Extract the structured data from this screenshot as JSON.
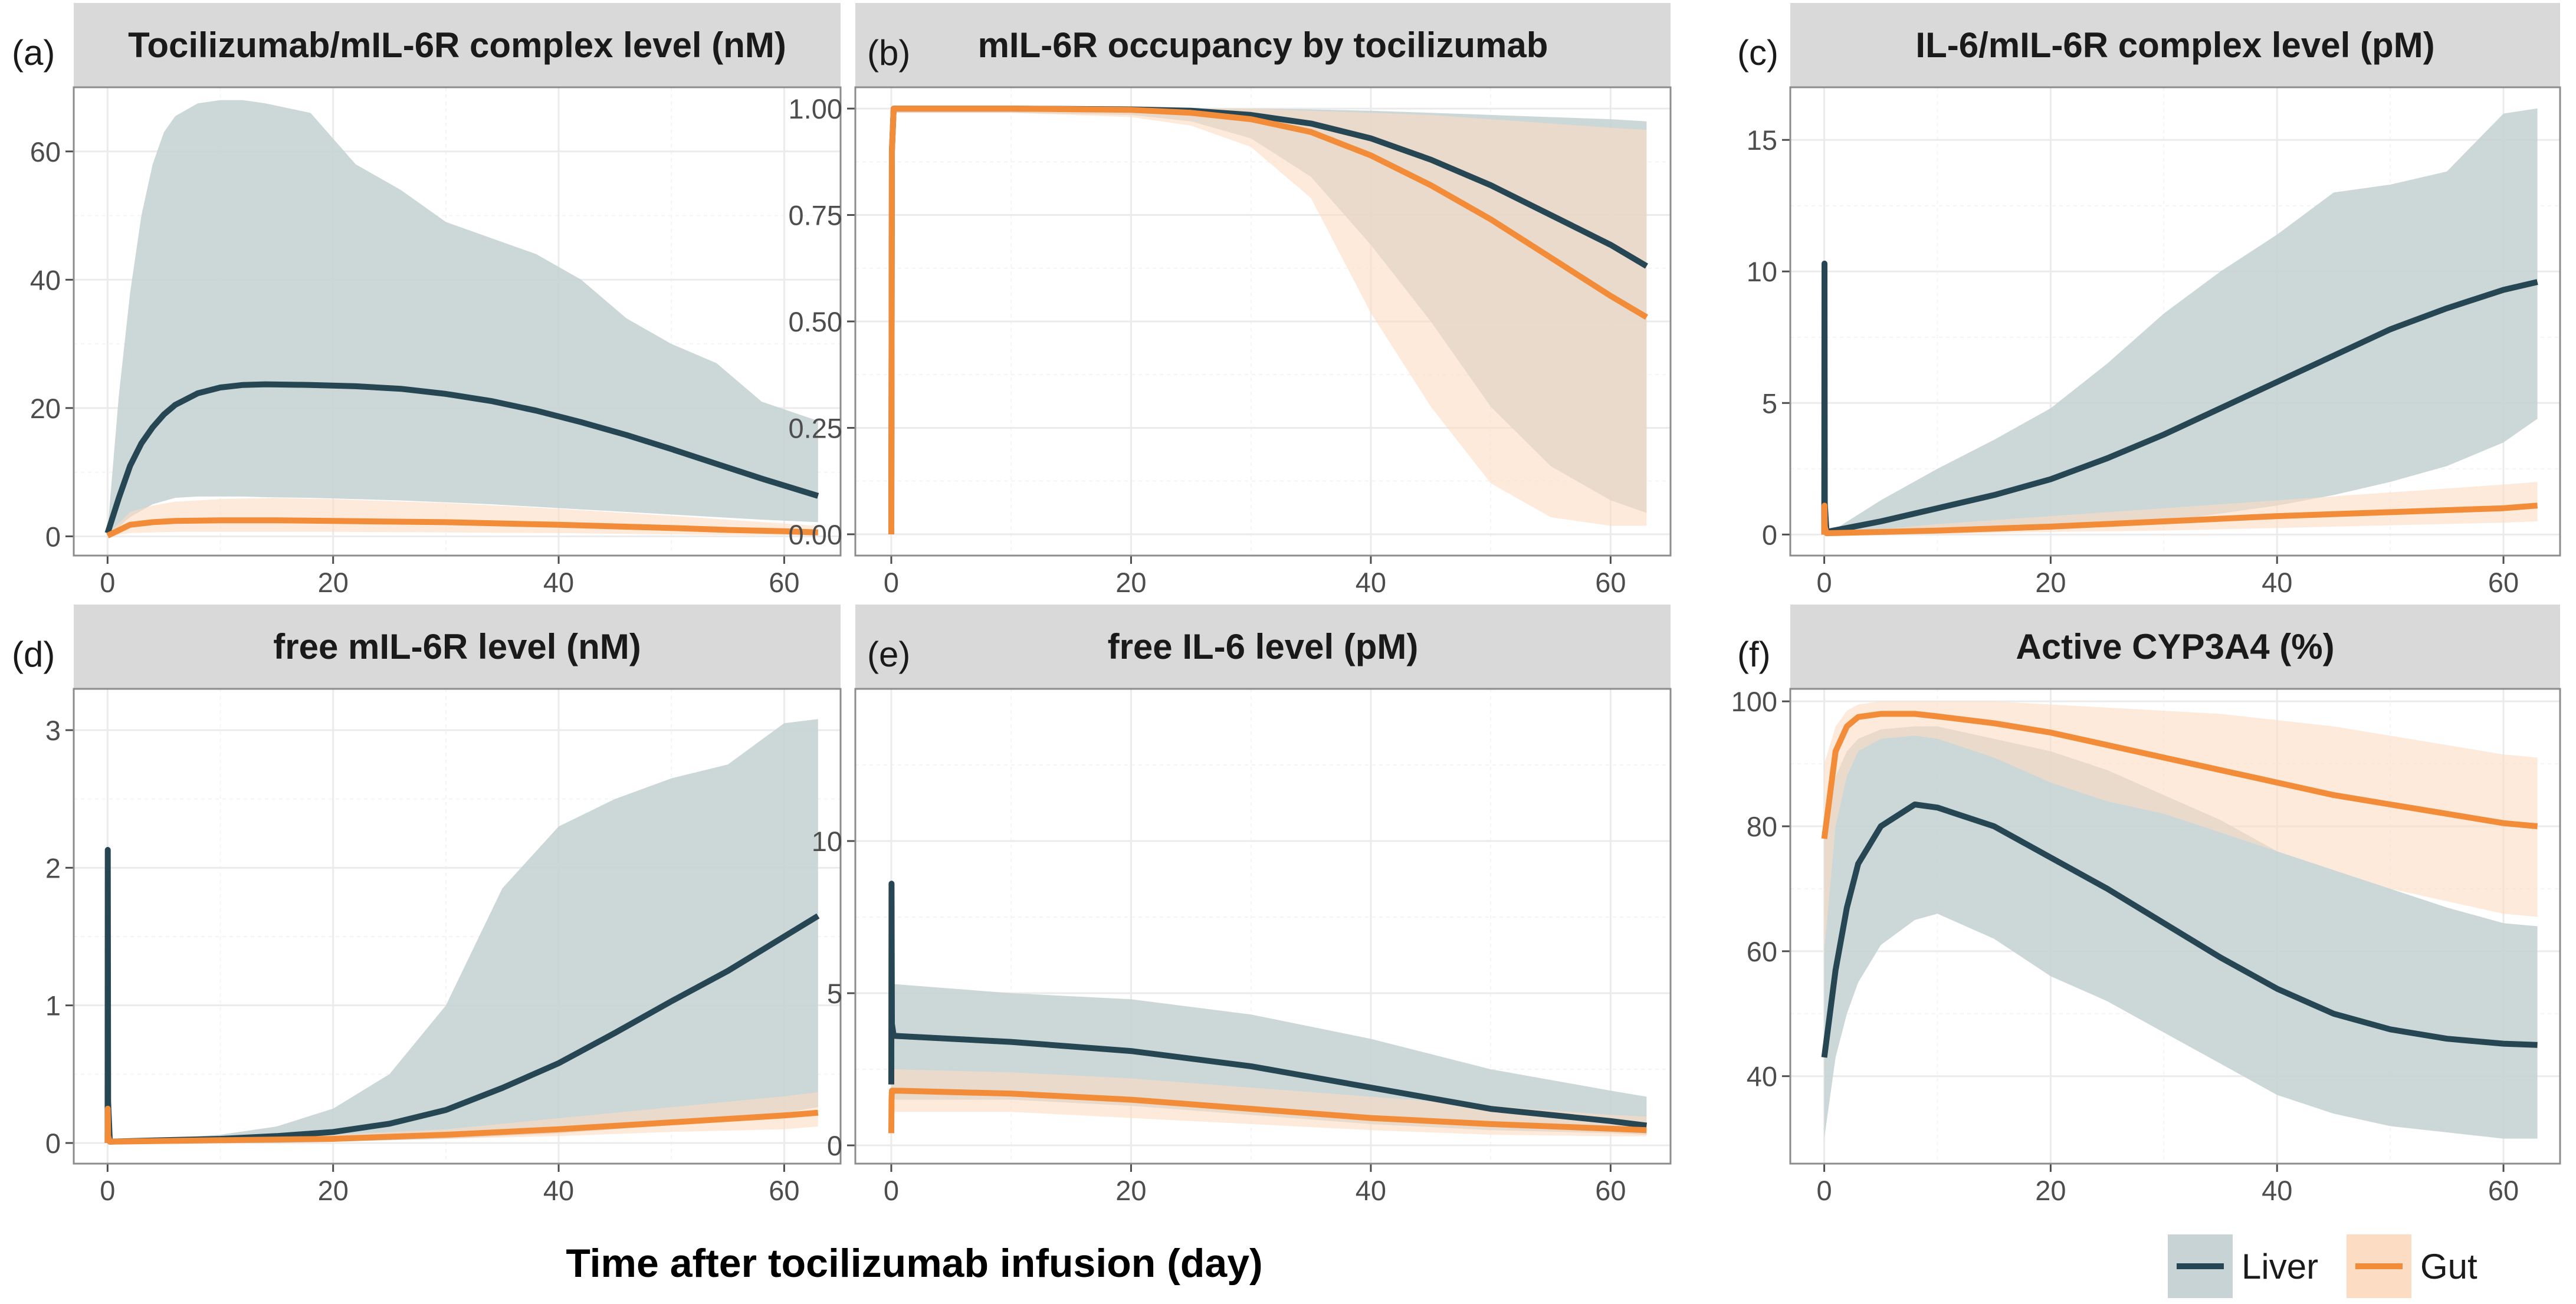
{
  "figure": {
    "xlabel": "Time after tocilizumab infusion (day)",
    "legend": [
      {
        "label": "Liver",
        "color": "#264653",
        "band_color": "#c7d3d4"
      },
      {
        "label": "Gut",
        "color": "#f28c38",
        "band_color": "#fcdcc3"
      }
    ]
  },
  "chart_data": [
    {
      "type": "line",
      "tag": "(a)",
      "title": "Tocilizumab/mIL-6R complex level (nM)",
      "xlim": [
        -3,
        65
      ],
      "ylim": [
        -3,
        70
      ],
      "xticks": [
        0,
        20,
        40,
        60
      ],
      "yticks": [
        0,
        20,
        40,
        60
      ],
      "series": [
        {
          "name": "Liver",
          "x": [
            0,
            1,
            2,
            3,
            4,
            5,
            6,
            8,
            10,
            12,
            14,
            18,
            22,
            26,
            30,
            34,
            38,
            42,
            46,
            50,
            54,
            58,
            63
          ],
          "y": [
            0.5,
            6,
            11,
            14.5,
            17,
            19,
            20.5,
            22.3,
            23.2,
            23.6,
            23.7,
            23.6,
            23.4,
            23,
            22.2,
            21.1,
            19.6,
            17.8,
            15.8,
            13.6,
            11.3,
            9,
            6.3
          ],
          "lower": [
            0,
            1.5,
            3,
            4,
            5,
            5.5,
            6,
            6.2,
            6.2,
            6.2,
            6.1,
            6,
            5.8,
            5.6,
            5.3,
            5,
            4.6,
            4.2,
            3.8,
            3.4,
            3,
            2.6,
            2.2
          ],
          "upper": [
            1,
            22,
            38,
            50,
            58,
            63,
            65.5,
            67.5,
            68,
            68,
            67.5,
            66,
            58,
            54,
            49,
            46.5,
            44,
            40,
            34,
            30,
            27,
            21,
            18
          ]
        },
        {
          "name": "Gut",
          "x": [
            0,
            2,
            4,
            6,
            10,
            15,
            20,
            30,
            40,
            50,
            55,
            60,
            63
          ],
          "y": [
            0.1,
            1.8,
            2.2,
            2.4,
            2.5,
            2.5,
            2.4,
            2.2,
            1.8,
            1.3,
            1,
            0.8,
            0.6
          ],
          "lower": [
            0,
            0.5,
            0.6,
            0.7,
            0.7,
            0.7,
            0.7,
            0.6,
            0.5,
            0.3,
            0.2,
            0.2,
            0.1
          ],
          "upper": [
            0.3,
            3.8,
            4.8,
            5.4,
            5.8,
            6,
            5.8,
            5.2,
            4.3,
            3.2,
            2.6,
            2,
            1.6
          ]
        }
      ]
    },
    {
      "type": "line",
      "tag": "(b)",
      "title": "mIL-6R occupancy by tocilizumab",
      "xlim": [
        -3,
        65
      ],
      "ylim": [
        -0.05,
        1.05
      ],
      "xticks": [
        0,
        20,
        40,
        60
      ],
      "yticks": [
        0,
        0.25,
        0.5,
        0.75,
        1
      ],
      "yticklabels": [
        "0.00",
        "0.25",
        "0.50",
        "0.75",
        "1.00"
      ],
      "series": [
        {
          "name": "Liver",
          "x": [
            0,
            0.05,
            0.2,
            10,
            20,
            25,
            30,
            35,
            40,
            45,
            50,
            55,
            60,
            63
          ],
          "y": [
            0,
            0.9,
            1,
            1,
            0.998,
            0.995,
            0.985,
            0.965,
            0.93,
            0.88,
            0.82,
            0.75,
            0.68,
            0.63
          ],
          "lower": [
            0,
            0.8,
            0.99,
            0.99,
            0.985,
            0.97,
            0.93,
            0.84,
            0.68,
            0.5,
            0.3,
            0.16,
            0.08,
            0.05
          ],
          "upper": [
            0,
            1,
            1,
            1,
            1,
            1,
            1,
            0.998,
            0.995,
            0.99,
            0.985,
            0.98,
            0.975,
            0.97
          ]
        },
        {
          "name": "Gut",
          "x": [
            0,
            0.05,
            0.2,
            10,
            20,
            25,
            30,
            35,
            40,
            45,
            50,
            55,
            60,
            63
          ],
          "y": [
            0,
            0.9,
            1,
            1,
            0.997,
            0.99,
            0.975,
            0.945,
            0.89,
            0.82,
            0.74,
            0.65,
            0.56,
            0.51
          ],
          "lower": [
            0,
            0.8,
            0.99,
            0.99,
            0.98,
            0.96,
            0.91,
            0.79,
            0.52,
            0.3,
            0.12,
            0.04,
            0.02,
            0.02
          ],
          "upper": [
            0,
            1,
            1,
            1,
            1,
            1,
            1,
            0.995,
            0.99,
            0.985,
            0.975,
            0.965,
            0.955,
            0.95
          ]
        }
      ]
    },
    {
      "type": "line",
      "tag": "(c)",
      "title": "IL-6/mIL-6R complex level (pM)",
      "xlim": [
        -3,
        65
      ],
      "ylim": [
        -0.8,
        17
      ],
      "xticks": [
        0,
        20,
        40,
        60
      ],
      "yticks": [
        0,
        5,
        10,
        15
      ],
      "series": [
        {
          "name": "Liver",
          "x": [
            0,
            0.02,
            0.05,
            0.2,
            5,
            10,
            15,
            20,
            25,
            30,
            35,
            40,
            45,
            50,
            55,
            60,
            63
          ],
          "y": [
            0,
            10.3,
            1.2,
            0.1,
            0.5,
            1,
            1.5,
            2.1,
            2.9,
            3.8,
            4.8,
            5.8,
            6.8,
            7.8,
            8.6,
            9.3,
            9.6
          ],
          "lower": [
            0,
            0,
            0,
            0,
            0,
            0.05,
            0.1,
            0.2,
            0.3,
            0.5,
            0.8,
            1.1,
            1.5,
            2,
            2.6,
            3.5,
            4.4
          ],
          "upper": [
            0,
            0,
            0,
            0,
            1.3,
            2.5,
            3.6,
            4.8,
            6.5,
            8.4,
            10,
            11.4,
            13,
            13.3,
            13.8,
            16,
            16.2
          ]
        },
        {
          "name": "Gut",
          "x": [
            0,
            0.02,
            0.05,
            0.2,
            10,
            20,
            30,
            40,
            50,
            60,
            63
          ],
          "y": [
            0,
            1.1,
            0.3,
            0.05,
            0.15,
            0.3,
            0.5,
            0.7,
            0.85,
            1,
            1.1
          ],
          "lower": [
            0,
            0,
            0,
            0,
            0.02,
            0.1,
            0.15,
            0.25,
            0.35,
            0.45,
            0.5
          ],
          "upper": [
            0,
            0,
            0,
            0,
            0.4,
            0.7,
            1,
            1.3,
            1.6,
            1.9,
            2
          ]
        }
      ]
    },
    {
      "type": "line",
      "tag": "(d)",
      "title": "free mIL-6R level (nM)",
      "xlim": [
        -3,
        65
      ],
      "ylim": [
        -0.15,
        3.3
      ],
      "xticks": [
        0,
        20,
        40,
        60
      ],
      "yticks": [
        0,
        1,
        2,
        3
      ],
      "series": [
        {
          "name": "Liver",
          "x": [
            0,
            0.02,
            0.05,
            0.2,
            5,
            10,
            15,
            20,
            25,
            30,
            35,
            40,
            45,
            50,
            55,
            60,
            63
          ],
          "y": [
            0,
            2.13,
            0.3,
            0.01,
            0.02,
            0.03,
            0.05,
            0.08,
            0.14,
            0.24,
            0.4,
            0.58,
            0.8,
            1.03,
            1.25,
            1.5,
            1.65
          ],
          "lower": [
            0,
            0,
            0,
            0,
            0,
            0,
            0,
            0.01,
            0.02,
            0.03,
            0.05,
            0.07,
            0.1,
            0.14,
            0.18,
            0.22,
            0.26
          ],
          "upper": [
            0,
            0,
            0,
            0,
            0.03,
            0.06,
            0.12,
            0.25,
            0.5,
            1,
            1.85,
            2.3,
            2.5,
            2.65,
            2.75,
            3.05,
            3.08
          ]
        },
        {
          "name": "Gut",
          "x": [
            0,
            0.02,
            0.05,
            0.2,
            10,
            20,
            30,
            40,
            50,
            60,
            63
          ],
          "y": [
            0,
            0.25,
            0.05,
            0.01,
            0.02,
            0.03,
            0.06,
            0.1,
            0.15,
            0.2,
            0.22
          ],
          "lower": [
            0,
            0,
            0,
            0,
            0.01,
            0.02,
            0.03,
            0.05,
            0.08,
            0.1,
            0.12
          ],
          "upper": [
            0,
            0,
            0,
            0,
            0.03,
            0.06,
            0.1,
            0.18,
            0.26,
            0.34,
            0.37
          ]
        }
      ]
    },
    {
      "type": "line",
      "tag": "(e)",
      "title": "free IL-6 level (pM)",
      "xlim": [
        -3,
        65
      ],
      "ylim": [
        -0.6,
        15
      ],
      "xticks": [
        0,
        20,
        40,
        60
      ],
      "yticks": [
        0,
        5,
        10
      ],
      "series": [
        {
          "name": "Liver",
          "x": [
            0,
            0.02,
            0.05,
            0.2,
            10,
            20,
            30,
            40,
            50,
            60,
            63
          ],
          "y": [
            2,
            8.6,
            4,
            3.6,
            3.4,
            3.1,
            2.6,
            1.9,
            1.2,
            0.8,
            0.65
          ],
          "lower": [
            1.5,
            1.5,
            1.5,
            1.5,
            1.5,
            1.3,
            1,
            0.7,
            0.5,
            0.4,
            0.35
          ],
          "upper": [
            5.3,
            5.3,
            5.3,
            5.3,
            5,
            4.8,
            4.3,
            3.5,
            2.5,
            1.8,
            1.6
          ]
        },
        {
          "name": "Gut",
          "x": [
            0,
            0.02,
            0.05,
            0.2,
            10,
            20,
            30,
            40,
            50,
            60,
            63
          ],
          "y": [
            0.4,
            1.5,
            1.8,
            1.8,
            1.7,
            1.5,
            1.2,
            0.9,
            0.7,
            0.55,
            0.5
          ],
          "lower": [
            0.4,
            1,
            1.1,
            1.1,
            1.1,
            0.9,
            0.7,
            0.5,
            0.35,
            0.3,
            0.3
          ],
          "upper": [
            0.4,
            2.3,
            2.5,
            2.5,
            2.4,
            2.2,
            1.9,
            1.6,
            1.3,
            1,
            0.95
          ]
        }
      ]
    },
    {
      "type": "line",
      "tag": "(f)",
      "title": "Active CYP3A4 (%)",
      "xlim": [
        -3,
        65
      ],
      "ylim": [
        26,
        102
      ],
      "xticks": [
        0,
        20,
        40,
        60
      ],
      "yticks": [
        40,
        60,
        80,
        100
      ],
      "series": [
        {
          "name": "Liver",
          "x": [
            0,
            1,
            2,
            3,
            5,
            8,
            10,
            15,
            20,
            25,
            30,
            35,
            40,
            45,
            50,
            55,
            60,
            63
          ],
          "y": [
            43,
            57,
            67,
            74,
            80,
            83.5,
            83,
            80,
            75,
            70,
            64.5,
            59,
            54,
            50,
            47.5,
            46,
            45.2,
            45
          ],
          "lower": [
            30,
            43,
            50,
            55,
            61,
            65,
            66,
            62,
            56,
            52,
            47,
            42,
            37,
            34,
            32,
            31,
            30,
            30
          ],
          "upper": [
            80,
            88,
            92,
            94,
            95.5,
            96,
            96,
            94,
            92,
            89,
            85,
            81,
            76,
            73,
            70,
            67,
            64.5,
            64
          ]
        },
        {
          "name": "Gut",
          "x": [
            0,
            1,
            2,
            3,
            5,
            8,
            10,
            15,
            20,
            25,
            30,
            35,
            40,
            45,
            50,
            55,
            60,
            63
          ],
          "y": [
            78,
            92,
            96,
            97.5,
            98,
            98,
            97.6,
            96.5,
            95,
            93,
            91,
            89,
            87,
            85,
            83.5,
            82,
            80.5,
            80
          ],
          "lower": [
            60,
            80,
            88,
            92,
            94,
            94.5,
            94,
            91,
            87,
            84,
            82,
            79,
            76,
            73,
            70,
            68,
            66,
            65.5
          ],
          "upper": [
            90,
            96,
            98.5,
            99.5,
            100,
            100,
            100,
            100,
            99.5,
            99,
            98.5,
            98,
            97,
            96,
            94.5,
            93,
            91.5,
            91
          ]
        }
      ]
    }
  ]
}
